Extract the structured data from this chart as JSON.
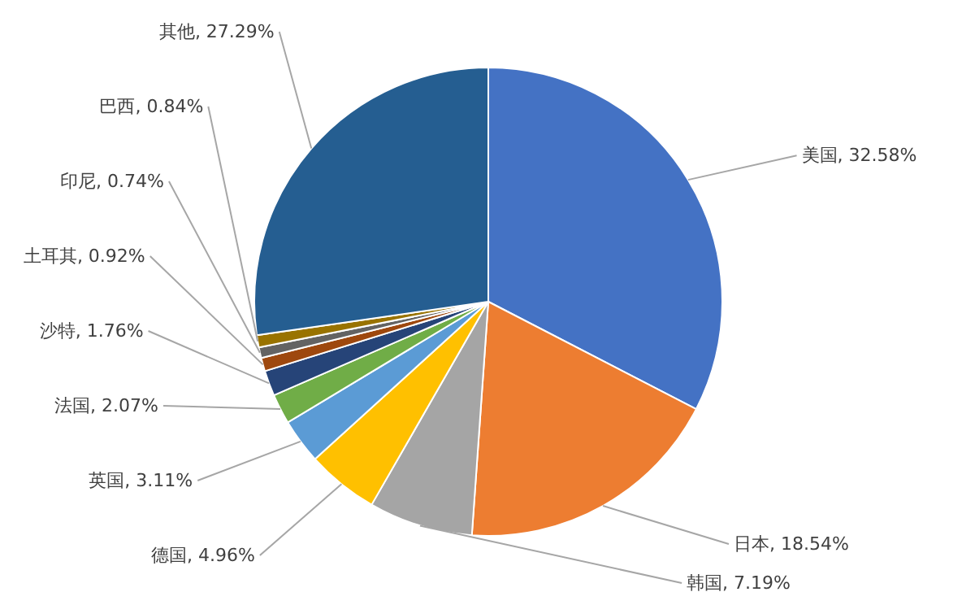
{
  "chart_data": {
    "type": "pie",
    "categories": [
      "美国",
      "日本",
      "韩国",
      "德国",
      "英国",
      "法国",
      "沙特",
      "土耳其",
      "印尼",
      "巴西",
      "其他"
    ],
    "values": [
      32.58,
      18.54,
      7.19,
      4.96,
      3.11,
      2.07,
      1.76,
      0.92,
      0.74,
      0.84,
      27.29
    ],
    "colors": [
      "#4472c4",
      "#ed7d31",
      "#a5a5a5",
      "#ffc000",
      "#5b9bd5",
      "#70ad47",
      "#264478",
      "#9e480e",
      "#636363",
      "#997300",
      "#255e91"
    ],
    "value_labels": [
      "32.58%",
      "18.54%",
      "7.19%",
      "4.96%",
      "3.11%",
      "2.07%",
      "1.76%",
      "0.92%",
      "0.74%",
      "0.84%",
      "27.29%"
    ]
  }
}
